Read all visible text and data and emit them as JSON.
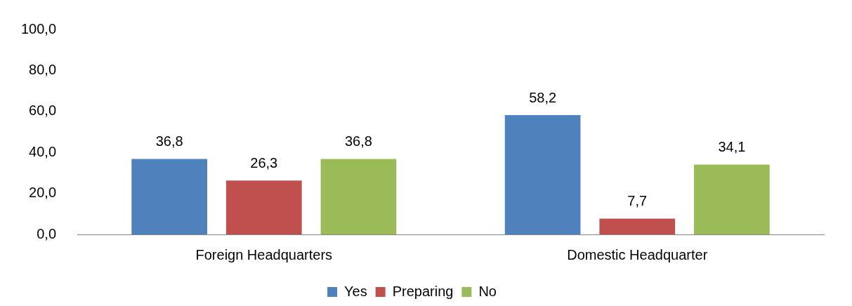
{
  "chart_data": {
    "type": "bar",
    "categories": [
      "Foreign Headquarters",
      "Domestic Headquarter"
    ],
    "series": [
      {
        "name": "Yes",
        "color": "#4f81bd",
        "values": [
          36.8,
          58.2
        ],
        "value_labels": [
          "36,8",
          "58,2"
        ]
      },
      {
        "name": "Preparing",
        "color": "#c0504d",
        "values": [
          26.3,
          7.7
        ],
        "value_labels": [
          "26,3",
          "7,7"
        ]
      },
      {
        "name": "No",
        "color": "#9bbb59",
        "values": [
          36.8,
          34.1
        ],
        "value_labels": [
          "36,8",
          "34,1"
        ]
      }
    ],
    "ylim": [
      0,
      100
    ],
    "yticks": [
      {
        "value": 0,
        "label": "0,0"
      },
      {
        "value": 20,
        "label": "20,0"
      },
      {
        "value": 40,
        "label": "40,0"
      },
      {
        "value": 60,
        "label": "60,0"
      },
      {
        "value": 80,
        "label": "80,0"
      },
      {
        "value": 100,
        "label": "100,0"
      }
    ],
    "grid": false,
    "legend": "bottom"
  }
}
